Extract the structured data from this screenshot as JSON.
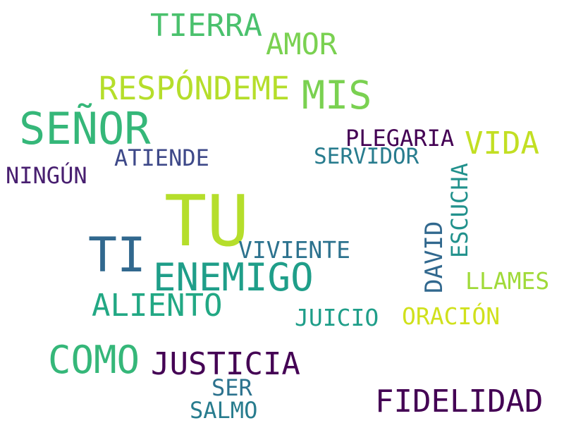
{
  "words": {
    "tu": {
      "text": "TU",
      "color": "#b5de2b"
    },
    "ti": {
      "text": "TI",
      "color": "#31688e"
    },
    "senor": {
      "text": "SEÑOR",
      "color": "#35b779"
    },
    "enemigo": {
      "text": "ENEMIGO",
      "color": "#1f9e89"
    },
    "mis": {
      "text": "MIS",
      "color": "#7ad151"
    },
    "respondeme": {
      "text": "RESPÓNDEME",
      "color": "#b5de2b"
    },
    "tierra": {
      "text": "TIERRA",
      "color": "#4ac16d"
    },
    "amor": {
      "text": "AMOR",
      "color": "#7ad151"
    },
    "como": {
      "text": "COMO",
      "color": "#35b779"
    },
    "justicia": {
      "text": "JUSTICIA",
      "color": "#440154"
    },
    "fidelidad": {
      "text": "FIDELIDAD",
      "color": "#440154"
    },
    "aliento": {
      "text": "ALIENTO",
      "color": "#22a884"
    },
    "vida": {
      "text": "VIDA",
      "color": "#c2df23"
    },
    "plegaria": {
      "text": "PLEGARIA",
      "color": "#440154"
    },
    "servidor": {
      "text": "SERVIDOR",
      "color": "#287c8e"
    },
    "atiende": {
      "text": "ATIENDE",
      "color": "#3e4989"
    },
    "ningun": {
      "text": "NINGÚN",
      "color": "#481f70"
    },
    "viviente": {
      "text": "VIVIENTE",
      "color": "#2c728e"
    },
    "escucha": {
      "text": "ESCUCHA",
      "color": "#21918c"
    },
    "david": {
      "text": "DAVID",
      "color": "#31688e"
    },
    "llames": {
      "text": "LLAMES",
      "color": "#a0da39"
    },
    "juicio": {
      "text": "JUICIO",
      "color": "#1f9e89"
    },
    "oracion": {
      "text": "ORACIÓN",
      "color": "#d0e11c"
    },
    "ser": {
      "text": "SER",
      "color": "#2c728e"
    },
    "salmo": {
      "text": "SALMO",
      "color": "#287c8e"
    }
  }
}
